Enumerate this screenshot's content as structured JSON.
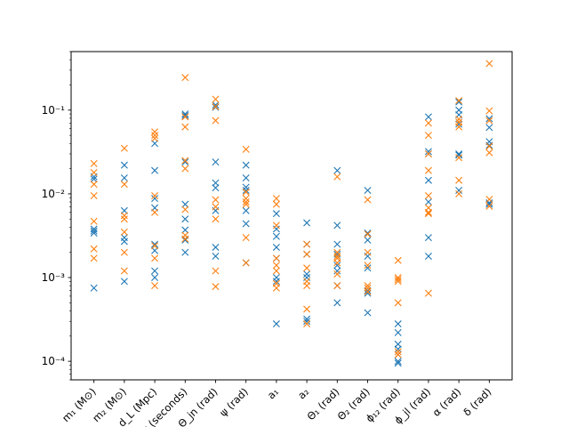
{
  "chart_data": {
    "type": "scatter",
    "title": "",
    "xlabel": "",
    "ylabel": "",
    "yscale": "log",
    "ylim": [
      6e-05,
      0.5
    ],
    "grid": false,
    "marker": "x",
    "categories": [
      "m₁ (M⊙)",
      "m₂ (M⊙)",
      "d_L (Mpc)",
      "t_c (seconds)",
      "Θ_jn (rad)",
      "ψ (rad)",
      "a₁",
      "a₂",
      "Θ₁ (rad)",
      "Θ₂ (rad)",
      "ϕ₁₂ (rad)",
      "ϕ_jl (rad)",
      "α (rad)",
      "δ (rad)"
    ],
    "y_ticks": [
      "10⁻⁴",
      "10⁻³",
      "10⁻²",
      "10⁻¹"
    ],
    "series": [
      {
        "color": "#1f77b4",
        "values": [
          [
            0.016,
            0.015,
            0.0036,
            0.0034,
            0.0038,
            0.00075
          ],
          [
            0.022,
            0.0155,
            0.0063,
            0.003,
            0.0027,
            0.0009
          ],
          [
            0.04,
            0.019,
            0.0088,
            0.0068,
            0.0025,
            0.0021,
            0.0012,
            0.001
          ],
          [
            0.09,
            0.086,
            0.024,
            0.0075,
            0.005,
            0.0037,
            0.0028,
            0.002
          ],
          [
            0.115,
            0.108,
            0.024,
            0.0135,
            0.0118,
            0.0063,
            0.0023,
            0.0018
          ],
          [
            0.022,
            0.0155,
            0.012,
            0.011,
            0.0063,
            0.0044,
            0.0015
          ],
          [
            0.0058,
            0.0038,
            0.0031,
            0.0023,
            0.0017,
            0.001,
            0.0009,
            0.00028
          ],
          [
            0.0045,
            0.0025,
            0.0019,
            0.0011,
            0.001,
            0.00032,
            0.0003
          ],
          [
            0.019,
            0.0042,
            0.0025,
            0.0019,
            0.0014,
            0.0012,
            0.0008,
            0.0005
          ],
          [
            0.011,
            0.0034,
            0.0028,
            0.0018,
            0.0013,
            0.0007,
            0.00065,
            0.00038
          ],
          [
            0.00028,
            0.00022,
            0.00016,
            0.00014,
            0.00012,
            0.0001,
            9.5e-05
          ],
          [
            0.083,
            0.032,
            0.03,
            0.0145,
            0.008,
            0.003,
            0.0018
          ],
          [
            0.125,
            0.1,
            0.088,
            0.068,
            0.03,
            0.029,
            0.011
          ],
          [
            0.079,
            0.062,
            0.042,
            0.038,
            0.0078,
            0.0075
          ]
        ]
      },
      {
        "color": "#ff7f0e",
        "values": [
          [
            0.023,
            0.018,
            0.013,
            0.0095,
            0.0047,
            0.0022,
            0.0017
          ],
          [
            0.035,
            0.013,
            0.0055,
            0.005,
            0.0035,
            0.002,
            0.0012
          ],
          [
            0.055,
            0.05,
            0.046,
            0.0095,
            0.006,
            0.0024,
            0.0017,
            0.0008
          ],
          [
            0.245,
            0.083,
            0.063,
            0.025,
            0.02,
            0.0065,
            0.0032,
            0.0029
          ],
          [
            0.135,
            0.11,
            0.075,
            0.0085,
            0.007,
            0.005,
            0.0012,
            0.00078
          ],
          [
            0.034,
            0.0105,
            0.0088,
            0.008,
            0.0075,
            0.003,
            0.0015
          ],
          [
            0.0088,
            0.0075,
            0.0042,
            0.0017,
            0.0014,
            0.0012,
            0.00085,
            0.00075
          ],
          [
            0.0025,
            0.0019,
            0.0013,
            0.0009,
            0.0008,
            0.00042,
            0.00028
          ],
          [
            0.016,
            0.002,
            0.0018,
            0.0017,
            0.0015,
            0.0011,
            0.0008
          ],
          [
            0.0085,
            0.0033,
            0.002,
            0.0014,
            0.0008,
            0.00075,
            0.00068
          ],
          [
            0.0016,
            0.001,
            0.00095,
            0.0009,
            0.0005,
            0.00013,
            0.00012
          ],
          [
            0.07,
            0.05,
            0.03,
            0.019,
            0.0095,
            0.0068,
            0.006,
            0.0058,
            0.00065
          ],
          [
            0.13,
            0.078,
            0.072,
            0.063,
            0.027,
            0.0145,
            0.01
          ],
          [
            0.36,
            0.098,
            0.075,
            0.037,
            0.031,
            0.0086,
            0.0071
          ]
        ]
      }
    ]
  }
}
